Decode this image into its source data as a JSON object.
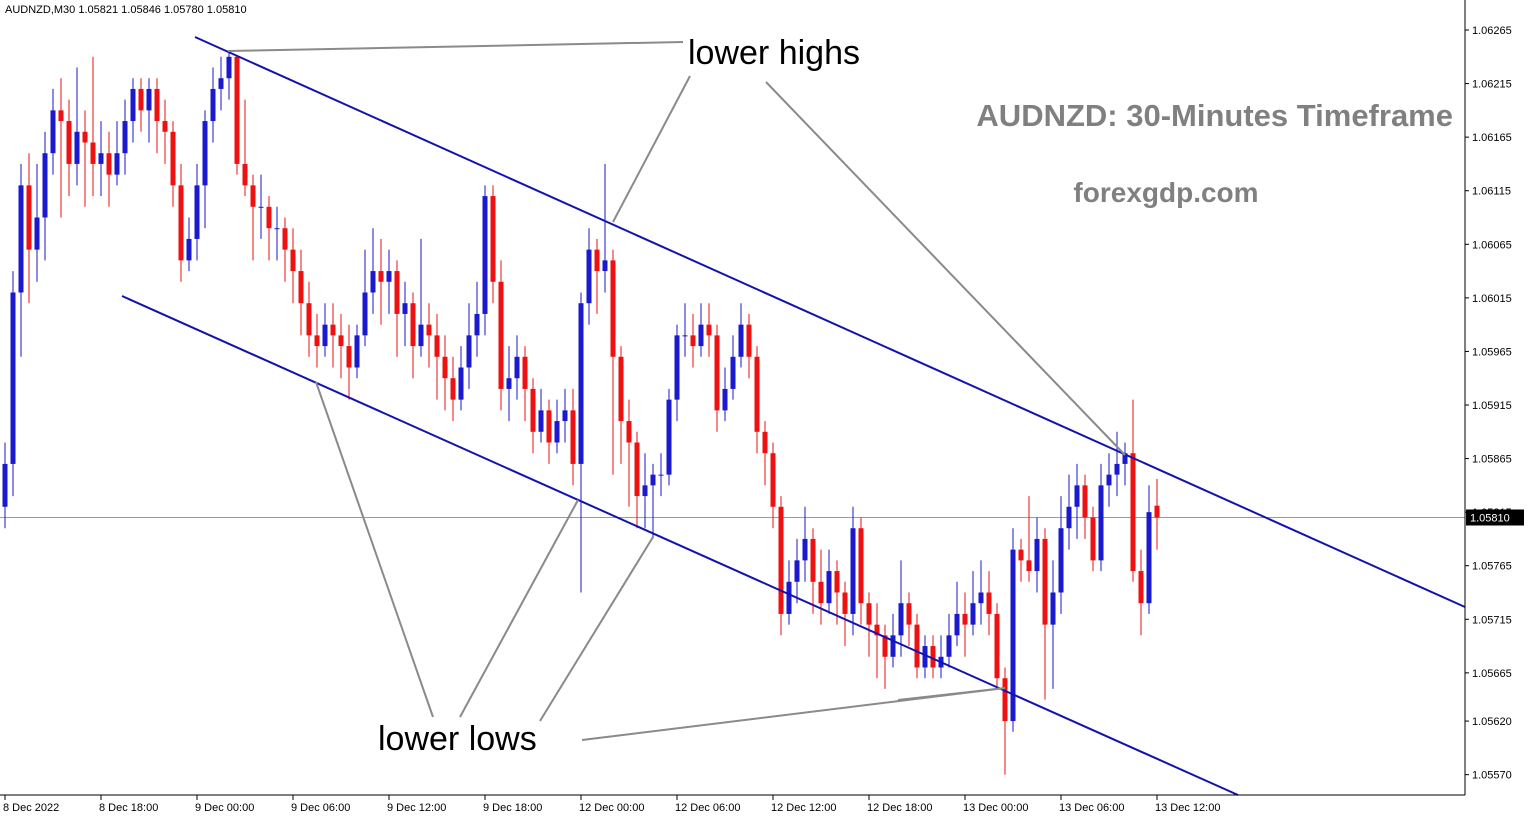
{
  "chart_data": {
    "type": "candlestick",
    "header": "AUDNZD,M30  1.05821 1.05846 1.05780 1.05810",
    "annotations": {
      "highs": "lower highs",
      "lows": "lower lows",
      "timeframe": "AUDNZD: 30-Minutes Timeframe",
      "site": "forexgdp.com"
    },
    "up_color": "#1a1acc",
    "down_color": "#ee1111",
    "ylim": [
      1.05551,
      1.06293
    ],
    "yticks": [
      1.06265,
      1.06215,
      1.06165,
      1.06115,
      1.06065,
      1.06015,
      1.05965,
      1.05915,
      1.05865,
      1.05815,
      1.05765,
      1.05715,
      1.05665,
      {
        "value": 1.0562,
        "label": "1.05620"
      },
      {
        "value": 1.0557,
        "label": "1.05570"
      }
    ],
    "current_price": {
      "value": 1.0581,
      "label": "1.05810"
    },
    "xticks": [
      {
        "value": 0,
        "label": "8 Dec 2022"
      },
      {
        "value": 12,
        "label": "8 Dec 18:00"
      },
      {
        "value": 24,
        "label": "9 Dec 00:00"
      },
      {
        "value": 36,
        "label": "9 Dec 06:00"
      },
      {
        "value": 48,
        "label": "9 Dec 12:00"
      },
      {
        "value": 60,
        "label": "9 Dec 18:00"
      },
      {
        "value": 72,
        "label": "12 Dec 00:00"
      },
      {
        "value": 84,
        "label": "12 Dec 06:00"
      },
      {
        "value": 96,
        "label": "12 Dec 12:00"
      },
      {
        "value": 108,
        "label": "12 Dec 18:00"
      },
      {
        "value": 120,
        "label": "13 Dec 00:00"
      },
      {
        "value": 132,
        "label": "13 Dec 06:00"
      },
      {
        "value": 144,
        "label": "13 Dec 12:00"
      }
    ],
    "candles": [
      [
        1.0582,
        1.0588,
        1.058,
        1.0586
      ],
      [
        1.0586,
        1.0604,
        1.0583,
        1.0602
      ],
      [
        1.0602,
        1.0614,
        1.0596,
        1.0612
      ],
      [
        1.0612,
        1.0615,
        1.0601,
        1.0606
      ],
      [
        1.0606,
        1.0614,
        1.0603,
        1.0609
      ],
      [
        1.0609,
        1.0617,
        1.0605,
        1.0615
      ],
      [
        1.0615,
        1.0621,
        1.0613,
        1.0619
      ],
      [
        1.0619,
        1.0622,
        1.0609,
        1.0618
      ],
      [
        1.0618,
        1.062,
        1.0611,
        1.0614
      ],
      [
        1.0614,
        1.0623,
        1.0612,
        1.0617
      ],
      [
        1.0617,
        1.0619,
        1.061,
        1.0616
      ],
      [
        1.0616,
        1.0624,
        1.0611,
        1.0614
      ],
      [
        1.0614,
        1.0618,
        1.0611,
        1.0615
      ],
      [
        1.0615,
        1.0617,
        1.061,
        1.0613
      ],
      [
        1.0613,
        1.0618,
        1.0612,
        1.0615
      ],
      [
        1.0615,
        1.062,
        1.0613,
        1.0618
      ],
      [
        1.0618,
        1.0622,
        1.0616,
        1.0621
      ],
      [
        1.0621,
        1.0622,
        1.0617,
        1.0619
      ],
      [
        1.0619,
        1.0622,
        1.0616,
        1.0621
      ],
      [
        1.0621,
        1.0622,
        1.0615,
        1.0618
      ],
      [
        1.0618,
        1.062,
        1.0614,
        1.0617
      ],
      [
        1.0617,
        1.0618,
        1.061,
        1.0612
      ],
      [
        1.0612,
        1.0614,
        1.0603,
        1.0605
      ],
      [
        1.0605,
        1.0609,
        1.0604,
        1.0607
      ],
      [
        1.0607,
        1.0614,
        1.0605,
        1.0612
      ],
      [
        1.0612,
        1.0619,
        1.0608,
        1.0618
      ],
      [
        1.0618,
        1.0623,
        1.0616,
        1.0621
      ],
      [
        1.0621,
        1.0624,
        1.0619,
        1.0622
      ],
      [
        1.0622,
        1.06245,
        1.062,
        1.0624
      ],
      [
        1.0624,
        1.0624,
        1.0613,
        1.0614
      ],
      [
        1.0614,
        1.062,
        1.0611,
        1.0612
      ],
      [
        1.0612,
        1.0613,
        1.0605,
        1.061
      ],
      [
        1.061,
        1.0613,
        1.0607,
        1.061
      ],
      [
        1.061,
        1.0611,
        1.0605,
        1.0608
      ],
      [
        1.0608,
        1.061,
        1.0605,
        1.0608
      ],
      [
        1.0608,
        1.0609,
        1.0603,
        1.0606
      ],
      [
        1.0606,
        1.0608,
        1.0601,
        1.0604
      ],
      [
        1.0604,
        1.0606,
        1.0598,
        1.0601
      ],
      [
        1.0601,
        1.0603,
        1.0596,
        1.0598
      ],
      [
        1.0598,
        1.06,
        1.0595,
        1.0597
      ],
      [
        1.0597,
        1.0601,
        1.0596,
        1.0599
      ],
      [
        1.0599,
        1.0601,
        1.0595,
        1.0598
      ],
      [
        1.0598,
        1.06,
        1.0594,
        1.0597
      ],
      [
        1.0597,
        1.0599,
        1.0592,
        1.0595
      ],
      [
        1.0595,
        1.0599,
        1.0594,
        1.0598
      ],
      [
        1.0598,
        1.0606,
        1.0597,
        1.0602
      ],
      [
        1.0602,
        1.0608,
        1.06,
        1.0604
      ],
      [
        1.0604,
        1.0607,
        1.0599,
        1.0603
      ],
      [
        1.0603,
        1.0606,
        1.06,
        1.0604
      ],
      [
        1.0604,
        1.0605,
        1.0596,
        1.06
      ],
      [
        1.06,
        1.0603,
        1.0597,
        1.0601
      ],
      [
        1.0601,
        1.0602,
        1.0594,
        1.0597
      ],
      [
        1.0597,
        1.0607,
        1.0596,
        1.0599
      ],
      [
        1.0599,
        1.0601,
        1.0595,
        1.0598
      ],
      [
        1.0598,
        1.06,
        1.0592,
        1.0596
      ],
      [
        1.0596,
        1.0598,
        1.0591,
        1.0594
      ],
      [
        1.0594,
        1.0596,
        1.059,
        1.0592
      ],
      [
        1.0592,
        1.0597,
        1.0591,
        1.0595
      ],
      [
        1.0595,
        1.0601,
        1.0593,
        1.0598
      ],
      [
        1.0598,
        1.0603,
        1.0596,
        1.06
      ],
      [
        1.06,
        1.0612,
        1.0598,
        1.0611
      ],
      [
        1.0611,
        1.0612,
        1.0601,
        1.0603
      ],
      [
        1.0603,
        1.0605,
        1.0591,
        1.0593
      ],
      [
        1.0593,
        1.0597,
        1.059,
        1.0594
      ],
      [
        1.0594,
        1.0598,
        1.0592,
        1.0596
      ],
      [
        1.0596,
        1.0597,
        1.059,
        1.0593
      ],
      [
        1.0593,
        1.0594,
        1.0587,
        1.0589
      ],
      [
        1.0589,
        1.0593,
        1.0588,
        1.0591
      ],
      [
        1.0591,
        1.0592,
        1.0586,
        1.0588
      ],
      [
        1.0588,
        1.0592,
        1.0587,
        1.059
      ],
      [
        1.059,
        1.0593,
        1.0588,
        1.0591
      ],
      [
        1.0591,
        1.0593,
        1.0584,
        1.0586
      ],
      [
        1.0586,
        1.0602,
        1.0574,
        1.0601
      ],
      [
        1.0601,
        1.0608,
        1.0599,
        1.0606
      ],
      [
        1.0606,
        1.0607,
        1.06,
        1.0604
      ],
      [
        1.0604,
        1.0614,
        1.0602,
        1.0605
      ],
      [
        1.0605,
        1.0606,
        1.0585,
        1.0596
      ],
      [
        1.0596,
        1.0597,
        1.0586,
        1.059
      ],
      [
        1.059,
        1.0592,
        1.0582,
        1.0588
      ],
      [
        1.0588,
        1.0589,
        1.058,
        1.0583
      ],
      [
        1.0583,
        1.0587,
        1.058,
        1.0584
      ],
      [
        1.0584,
        1.0586,
        1.0579,
        1.0585
      ],
      [
        1.0585,
        1.0587,
        1.0583,
        1.0585
      ],
      [
        1.0585,
        1.0593,
        1.0584,
        1.0592
      ],
      [
        1.0592,
        1.0599,
        1.059,
        1.0598
      ],
      [
        1.0598,
        1.0601,
        1.0596,
        1.0598
      ],
      [
        1.0598,
        1.06,
        1.0595,
        1.0597
      ],
      [
        1.0597,
        1.0601,
        1.0596,
        1.0599
      ],
      [
        1.0599,
        1.0601,
        1.0596,
        1.0598
      ],
      [
        1.0598,
        1.0599,
        1.0589,
        1.0591
      ],
      [
        1.0591,
        1.0595,
        1.059,
        1.0593
      ],
      [
        1.0593,
        1.0598,
        1.0592,
        1.0596
      ],
      [
        1.0596,
        1.0601,
        1.0595,
        1.0599
      ],
      [
        1.0599,
        1.06,
        1.0594,
        1.0596
      ],
      [
        1.0596,
        1.0597,
        1.0587,
        1.0589
      ],
      [
        1.0589,
        1.059,
        1.0584,
        1.0587
      ],
      [
        1.0587,
        1.0588,
        1.058,
        1.0582
      ],
      [
        1.0582,
        1.0583,
        1.057,
        1.0572
      ],
      [
        1.0572,
        1.0577,
        1.0571,
        1.0575
      ],
      [
        1.0575,
        1.0579,
        1.0573,
        1.0577
      ],
      [
        1.0577,
        1.0582,
        1.0575,
        1.0579
      ],
      [
        1.0579,
        1.058,
        1.0572,
        1.0575
      ],
      [
        1.0575,
        1.0578,
        1.0571,
        1.0573
      ],
      [
        1.0573,
        1.0578,
        1.0572,
        1.0576
      ],
      [
        1.0576,
        1.0577,
        1.0571,
        1.0574
      ],
      [
        1.0574,
        1.0575,
        1.0569,
        1.0572
      ],
      [
        1.0572,
        1.0582,
        1.057,
        1.058
      ],
      [
        1.058,
        1.0581,
        1.0571,
        1.0573
      ],
      [
        1.0573,
        1.0574,
        1.0568,
        1.0571
      ],
      [
        1.0571,
        1.0573,
        1.0566,
        1.057
      ],
      [
        1.057,
        1.0571,
        1.0565,
        1.0568
      ],
      [
        1.0568,
        1.0572,
        1.0567,
        1.057
      ],
      [
        1.057,
        1.0577,
        1.0568,
        1.0573
      ],
      [
        1.0573,
        1.0574,
        1.0569,
        1.0571
      ],
      [
        1.0571,
        1.0572,
        1.0566,
        1.0567
      ],
      [
        1.0567,
        1.057,
        1.0566,
        1.0569
      ],
      [
        1.0569,
        1.057,
        1.0566,
        1.0567
      ],
      [
        1.0567,
        1.057,
        1.0566,
        1.0568
      ],
      [
        1.0568,
        1.0572,
        1.0567,
        1.057
      ],
      [
        1.057,
        1.0575,
        1.0569,
        1.0572
      ],
      [
        1.0572,
        1.0574,
        1.0568,
        1.0571
      ],
      [
        1.0571,
        1.0576,
        1.057,
        1.0573
      ],
      [
        1.0573,
        1.0577,
        1.0571,
        1.0574
      ],
      [
        1.0574,
        1.0576,
        1.057,
        1.0572
      ],
      [
        1.0572,
        1.0573,
        1.0565,
        1.0566
      ],
      [
        1.0566,
        1.0567,
        1.0557,
        1.0562
      ],
      [
        1.0562,
        1.058,
        1.0561,
        1.0578
      ],
      [
        1.0578,
        1.0579,
        1.0575,
        1.0577
      ],
      [
        1.0577,
        1.0583,
        1.0575,
        1.0576
      ],
      [
        1.0576,
        1.0581,
        1.0574,
        1.0579
      ],
      [
        1.0579,
        1.058,
        1.0564,
        1.0571
      ],
      [
        1.0571,
        1.0577,
        1.0565,
        1.0574
      ],
      [
        1.0574,
        1.0583,
        1.0572,
        1.058
      ],
      [
        1.058,
        1.0585,
        1.0578,
        1.0582
      ],
      [
        1.0582,
        1.0586,
        1.0579,
        1.0584
      ],
      [
        1.0584,
        1.0585,
        1.0579,
        1.0581
      ],
      [
        1.0581,
        1.0582,
        1.0576,
        1.0577
      ],
      [
        1.0577,
        1.0586,
        1.0576,
        1.0584
      ],
      [
        1.0584,
        1.0587,
        1.0582,
        1.0585
      ],
      [
        1.0585,
        1.0589,
        1.0583,
        1.0586
      ],
      [
        1.0586,
        1.0588,
        1.0584,
        1.0587
      ],
      [
        1.0587,
        1.0592,
        1.0575,
        1.0576
      ],
      [
        1.0576,
        1.0578,
        1.057,
        1.0573
      ],
      [
        1.0573,
        1.0584,
        1.0572,
        1.05815
      ],
      [
        1.05821,
        1.05846,
        1.0578,
        1.0581
      ]
    ]
  }
}
